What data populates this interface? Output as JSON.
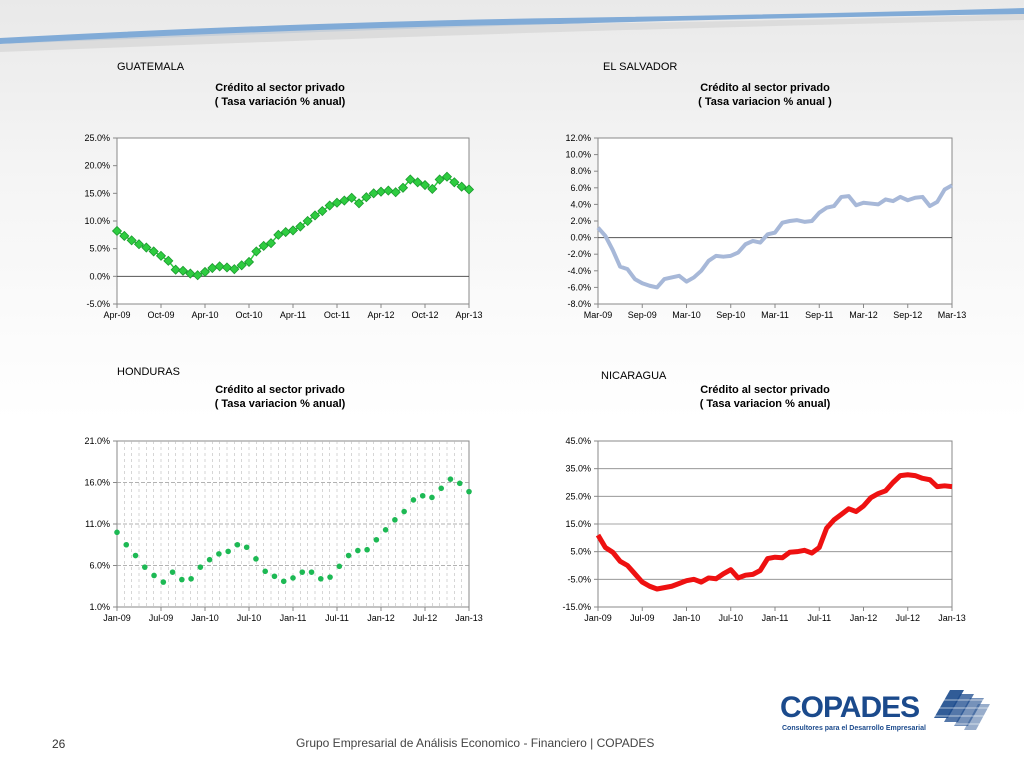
{
  "page_number": "26",
  "footer": "Grupo Empresarial de Análisis Economico - Financiero | COPADES",
  "logo": {
    "name": "COPADES",
    "tagline": "Consultores para el Desarrollo Empresarial",
    "color": "#1b4a8c"
  },
  "colors": {
    "guatemala": "#2ecc40",
    "el_salvador": "#a7b8d8",
    "honduras": "#1db954",
    "nicaragua": "#ee1111",
    "header_swoosh": "#6fa0d4"
  },
  "charts": {
    "guatemala": {
      "country": "GUATEMALA",
      "title": "Crédito al sector privado",
      "subtitle": "( Tasa variación % anual)"
    },
    "el_salvador": {
      "country": "EL SALVADOR",
      "title": "Crédito al sector privado",
      "subtitle": "( Tasa variacion % anual )"
    },
    "honduras": {
      "country": "HONDURAS",
      "title": "Crédito al sector privado",
      "subtitle": "( Tasa variacion % anual)"
    },
    "nicaragua": {
      "country": "NICARAGUA",
      "title": "Crédito al sector privado",
      "subtitle": "( Tasa variacion % anual)"
    }
  },
  "chart_data": [
    {
      "key": "guatemala",
      "type": "line",
      "marker": "diamond",
      "title": "Crédito al sector privado ( Tasa variación % anual)",
      "ylim": [
        -5,
        25
      ],
      "yticks": [
        "-5.0%",
        "0.0%",
        "5.0%",
        "10.0%",
        "15.0%",
        "20.0%",
        "25.0%"
      ],
      "xticks": [
        "Apr-09",
        "Oct-09",
        "Apr-10",
        "Oct-10",
        "Apr-11",
        "Oct-11",
        "Apr-12",
        "Oct-12",
        "Apr-13"
      ],
      "values": [
        8.2,
        7.3,
        6.5,
        5.8,
        5.2,
        4.5,
        3.7,
        2.8,
        1.2,
        1.0,
        0.5,
        0.2,
        0.8,
        1.5,
        1.8,
        1.6,
        1.3,
        2.0,
        2.6,
        4.5,
        5.5,
        6.0,
        7.5,
        8.0,
        8.3,
        9.0,
        10.0,
        11.0,
        11.8,
        12.8,
        13.3,
        13.7,
        14.2,
        13.2,
        14.3,
        15.0,
        15.3,
        15.5,
        15.2,
        16.0,
        17.5,
        17.0,
        16.5,
        15.8,
        17.5,
        18.0,
        17.0,
        16.2,
        15.7
      ]
    },
    {
      "key": "el_salvador",
      "type": "line",
      "title": "Crédito al sector privado ( Tasa variacion % anual )",
      "ylim": [
        -8,
        12
      ],
      "yticks": [
        "-8.0%",
        "-6.0%",
        "-4.0%",
        "-2.0%",
        "0.0%",
        "2.0%",
        "4.0%",
        "6.0%",
        "8.0%",
        "10.0%",
        "12.0%"
      ],
      "xticks": [
        "Mar-09",
        "Sep-09",
        "Mar-10",
        "Sep-10",
        "Mar-11",
        "Sep-11",
        "Mar-12",
        "Sep-12",
        "Mar-13"
      ],
      "values": [
        1.2,
        0.2,
        -1.5,
        -3.5,
        -3.8,
        -5.0,
        -5.5,
        -5.8,
        -6.0,
        -5.0,
        -4.8,
        -4.6,
        -5.3,
        -4.8,
        -4.0,
        -2.8,
        -2.2,
        -2.3,
        -2.2,
        -1.8,
        -0.8,
        -0.4,
        -0.6,
        0.4,
        0.6,
        1.8,
        2.0,
        2.1,
        1.9,
        2.0,
        3.0,
        3.6,
        3.8,
        4.9,
        5.0,
        3.9,
        4.2,
        4.1,
        4.0,
        4.6,
        4.4,
        4.9,
        4.5,
        4.8,
        4.9,
        3.8,
        4.3,
        5.8,
        6.3
      ]
    },
    {
      "key": "honduras",
      "type": "scatter",
      "title": "Crédito al sector privado ( Tasa variacion % anual)",
      "ylim": [
        1,
        21
      ],
      "yticks": [
        "1.0%",
        "6.0%",
        "11.0%",
        "16.0%",
        "21.0%"
      ],
      "xticks": [
        "Jan-09",
        "Jul-09",
        "Jan-10",
        "Jul-10",
        "Jan-11",
        "Jul-11",
        "Jan-12",
        "Jul-12",
        "Jan-13"
      ],
      "values": [
        10.0,
        8.5,
        7.2,
        5.8,
        4.8,
        4.0,
        5.2,
        4.3,
        4.4,
        5.8,
        6.7,
        7.4,
        7.7,
        8.5,
        8.2,
        6.8,
        5.3,
        4.7,
        4.1,
        4.5,
        5.2,
        5.2,
        4.4,
        4.6,
        5.9,
        7.2,
        7.8,
        7.9,
        9.1,
        10.3,
        11.5,
        12.5,
        13.9,
        14.4,
        14.2,
        15.3,
        16.4,
        15.9,
        14.9
      ]
    },
    {
      "key": "nicaragua",
      "type": "line",
      "title": "Crédito al sector privado ( Tasa variacion % anual)",
      "ylim": [
        -15,
        45
      ],
      "yticks": [
        "-15.0%",
        "-5.0%",
        "5.0%",
        "15.0%",
        "25.0%",
        "35.0%",
        "45.0%"
      ],
      "xticks": [
        "Jan-09",
        "Jul-09",
        "Jan-10",
        "Jul-10",
        "Jan-11",
        "Jul-11",
        "Jan-12",
        "Jul-12",
        "Jan-13"
      ],
      "values": [
        11.0,
        6.5,
        4.8,
        1.5,
        0.0,
        -3.0,
        -6.0,
        -7.5,
        -8.5,
        -8.0,
        -7.5,
        -6.5,
        -5.5,
        -5.0,
        -6.0,
        -4.5,
        -4.8,
        -3.0,
        -1.5,
        -4.5,
        -3.5,
        -3.2,
        -1.8,
        2.5,
        3.0,
        2.8,
        4.8,
        5.0,
        5.5,
        4.5,
        6.5,
        13.5,
        16.5,
        18.5,
        20.5,
        19.5,
        21.5,
        24.5,
        26.0,
        27.0,
        30.0,
        32.5,
        32.8,
        32.5,
        31.5,
        31.0,
        28.5,
        28.8,
        28.5
      ]
    }
  ]
}
